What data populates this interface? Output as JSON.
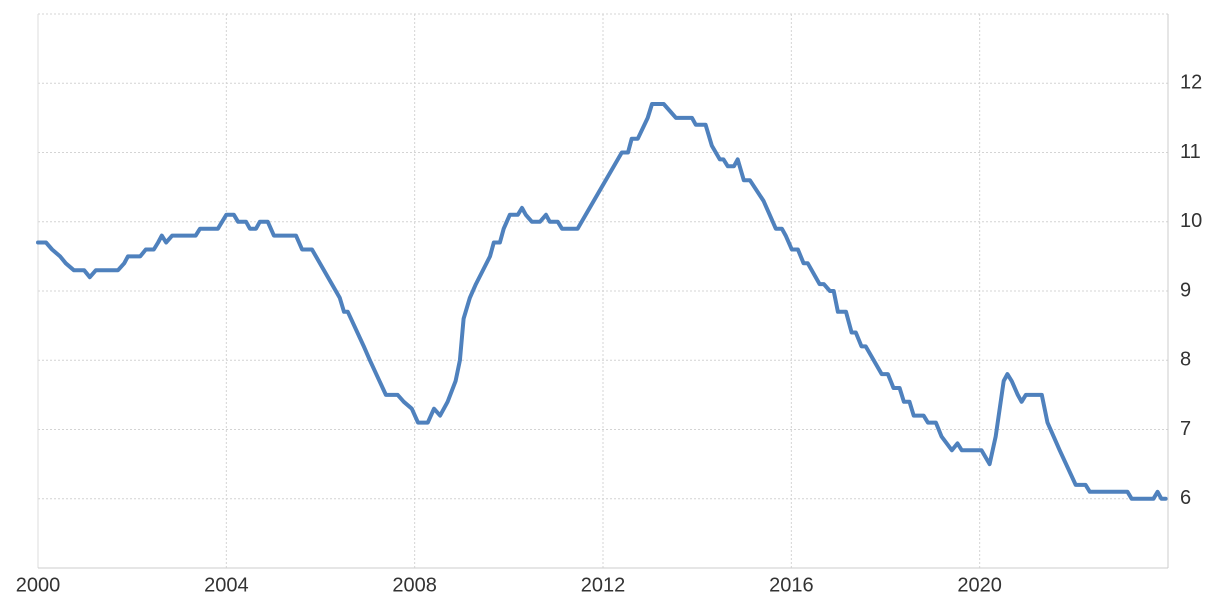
{
  "chart_data": {
    "type": "line",
    "x": [
      2000.0,
      2000.17,
      2000.3,
      2000.47,
      2000.59,
      2000.76,
      2000.98,
      2001.1,
      2001.23,
      2001.7,
      2001.83,
      2001.91,
      2002.17,
      2002.29,
      2002.46,
      2002.55,
      2002.63,
      2002.72,
      2002.85,
      2003.35,
      2003.44,
      2003.82,
      2004.0,
      2004.16,
      2004.25,
      2004.42,
      2004.5,
      2004.63,
      2004.71,
      2004.88,
      2005.01,
      2005.48,
      2005.61,
      2005.82,
      2006.41,
      2006.5,
      2006.58,
      2006.92,
      2007.05,
      2007.39,
      2007.64,
      2007.77,
      2007.94,
      2008.07,
      2008.28,
      2008.41,
      2008.54,
      2008.7,
      2008.87,
      2008.96,
      2009.04,
      2009.17,
      2009.3,
      2009.6,
      2009.68,
      2009.81,
      2009.89,
      2010.02,
      2010.19,
      2010.28,
      2010.36,
      2010.49,
      2010.66,
      2010.79,
      2010.87,
      2011.04,
      2011.13,
      2011.46,
      2012.4,
      2012.53,
      2012.61,
      2012.74,
      2012.95,
      2013.04,
      2013.29,
      2013.42,
      2013.55,
      2013.89,
      2013.97,
      2014.18,
      2014.31,
      2014.48,
      2014.56,
      2014.65,
      2014.78,
      2014.86,
      2014.99,
      2015.12,
      2015.41,
      2015.54,
      2015.67,
      2015.8,
      2015.88,
      2016.01,
      2016.14,
      2016.26,
      2016.35,
      2016.6,
      2016.69,
      2016.82,
      2016.9,
      2016.99,
      2017.16,
      2017.28,
      2017.37,
      2017.49,
      2017.58,
      2017.92,
      2018.05,
      2018.17,
      2018.3,
      2018.39,
      2018.51,
      2018.6,
      2018.81,
      2018.9,
      2019.07,
      2019.19,
      2019.41,
      2019.53,
      2019.62,
      2020.04,
      2020.21,
      2020.34,
      2020.51,
      2020.59,
      2020.68,
      2020.81,
      2020.89,
      2020.98,
      2021.32,
      2021.44,
      2021.57,
      2021.7,
      2022.04,
      2022.25,
      2022.34,
      2023.14,
      2023.23,
      2023.69,
      2023.78,
      2023.86,
      2023.95
    ],
    "values": [
      9.7,
      9.7,
      9.6,
      9.5,
      9.4,
      9.3,
      9.3,
      9.2,
      9.3,
      9.3,
      9.4,
      9.5,
      9.5,
      9.6,
      9.6,
      9.7,
      9.8,
      9.7,
      9.8,
      9.8,
      9.9,
      9.9,
      10.1,
      10.1,
      10.0,
      10.0,
      9.9,
      9.9,
      10.0,
      10.0,
      9.8,
      9.8,
      9.6,
      9.6,
      8.9,
      8.7,
      8.7,
      8.2,
      8.0,
      7.5,
      7.5,
      7.4,
      7.3,
      7.1,
      7.1,
      7.3,
      7.2,
      7.4,
      7.7,
      8.0,
      8.6,
      8.9,
      9.1,
      9.5,
      9.7,
      9.7,
      9.9,
      10.1,
      10.1,
      10.2,
      10.1,
      10.0,
      10.0,
      10.1,
      10.0,
      10.0,
      9.9,
      9.9,
      11.0,
      11.0,
      11.2,
      11.2,
      11.5,
      11.7,
      11.7,
      11.6,
      11.5,
      11.5,
      11.4,
      11.4,
      11.1,
      10.9,
      10.9,
      10.8,
      10.8,
      10.9,
      10.6,
      10.6,
      10.3,
      10.1,
      9.9,
      9.9,
      9.8,
      9.6,
      9.6,
      9.4,
      9.4,
      9.1,
      9.1,
      9.0,
      9.0,
      8.7,
      8.7,
      8.4,
      8.4,
      8.2,
      8.2,
      7.8,
      7.8,
      7.6,
      7.6,
      7.4,
      7.4,
      7.2,
      7.2,
      7.1,
      7.1,
      6.9,
      6.7,
      6.8,
      6.7,
      6.7,
      6.5,
      6.9,
      7.7,
      7.8,
      7.7,
      7.5,
      7.4,
      7.5,
      7.5,
      7.1,
      6.9,
      6.7,
      6.2,
      6.2,
      6.1,
      6.1,
      6.0,
      6.0,
      6.1,
      6.0,
      6.0
    ],
    "color": "#4f81bd",
    "xlim": [
      2000,
      2024
    ],
    "xticks": [
      2000,
      2004,
      2008,
      2012,
      2016,
      2020
    ],
    "ylim": [
      5,
      13
    ],
    "yticks": [
      6,
      7,
      8,
      9,
      10,
      11,
      12
    ],
    "grid": true
  }
}
